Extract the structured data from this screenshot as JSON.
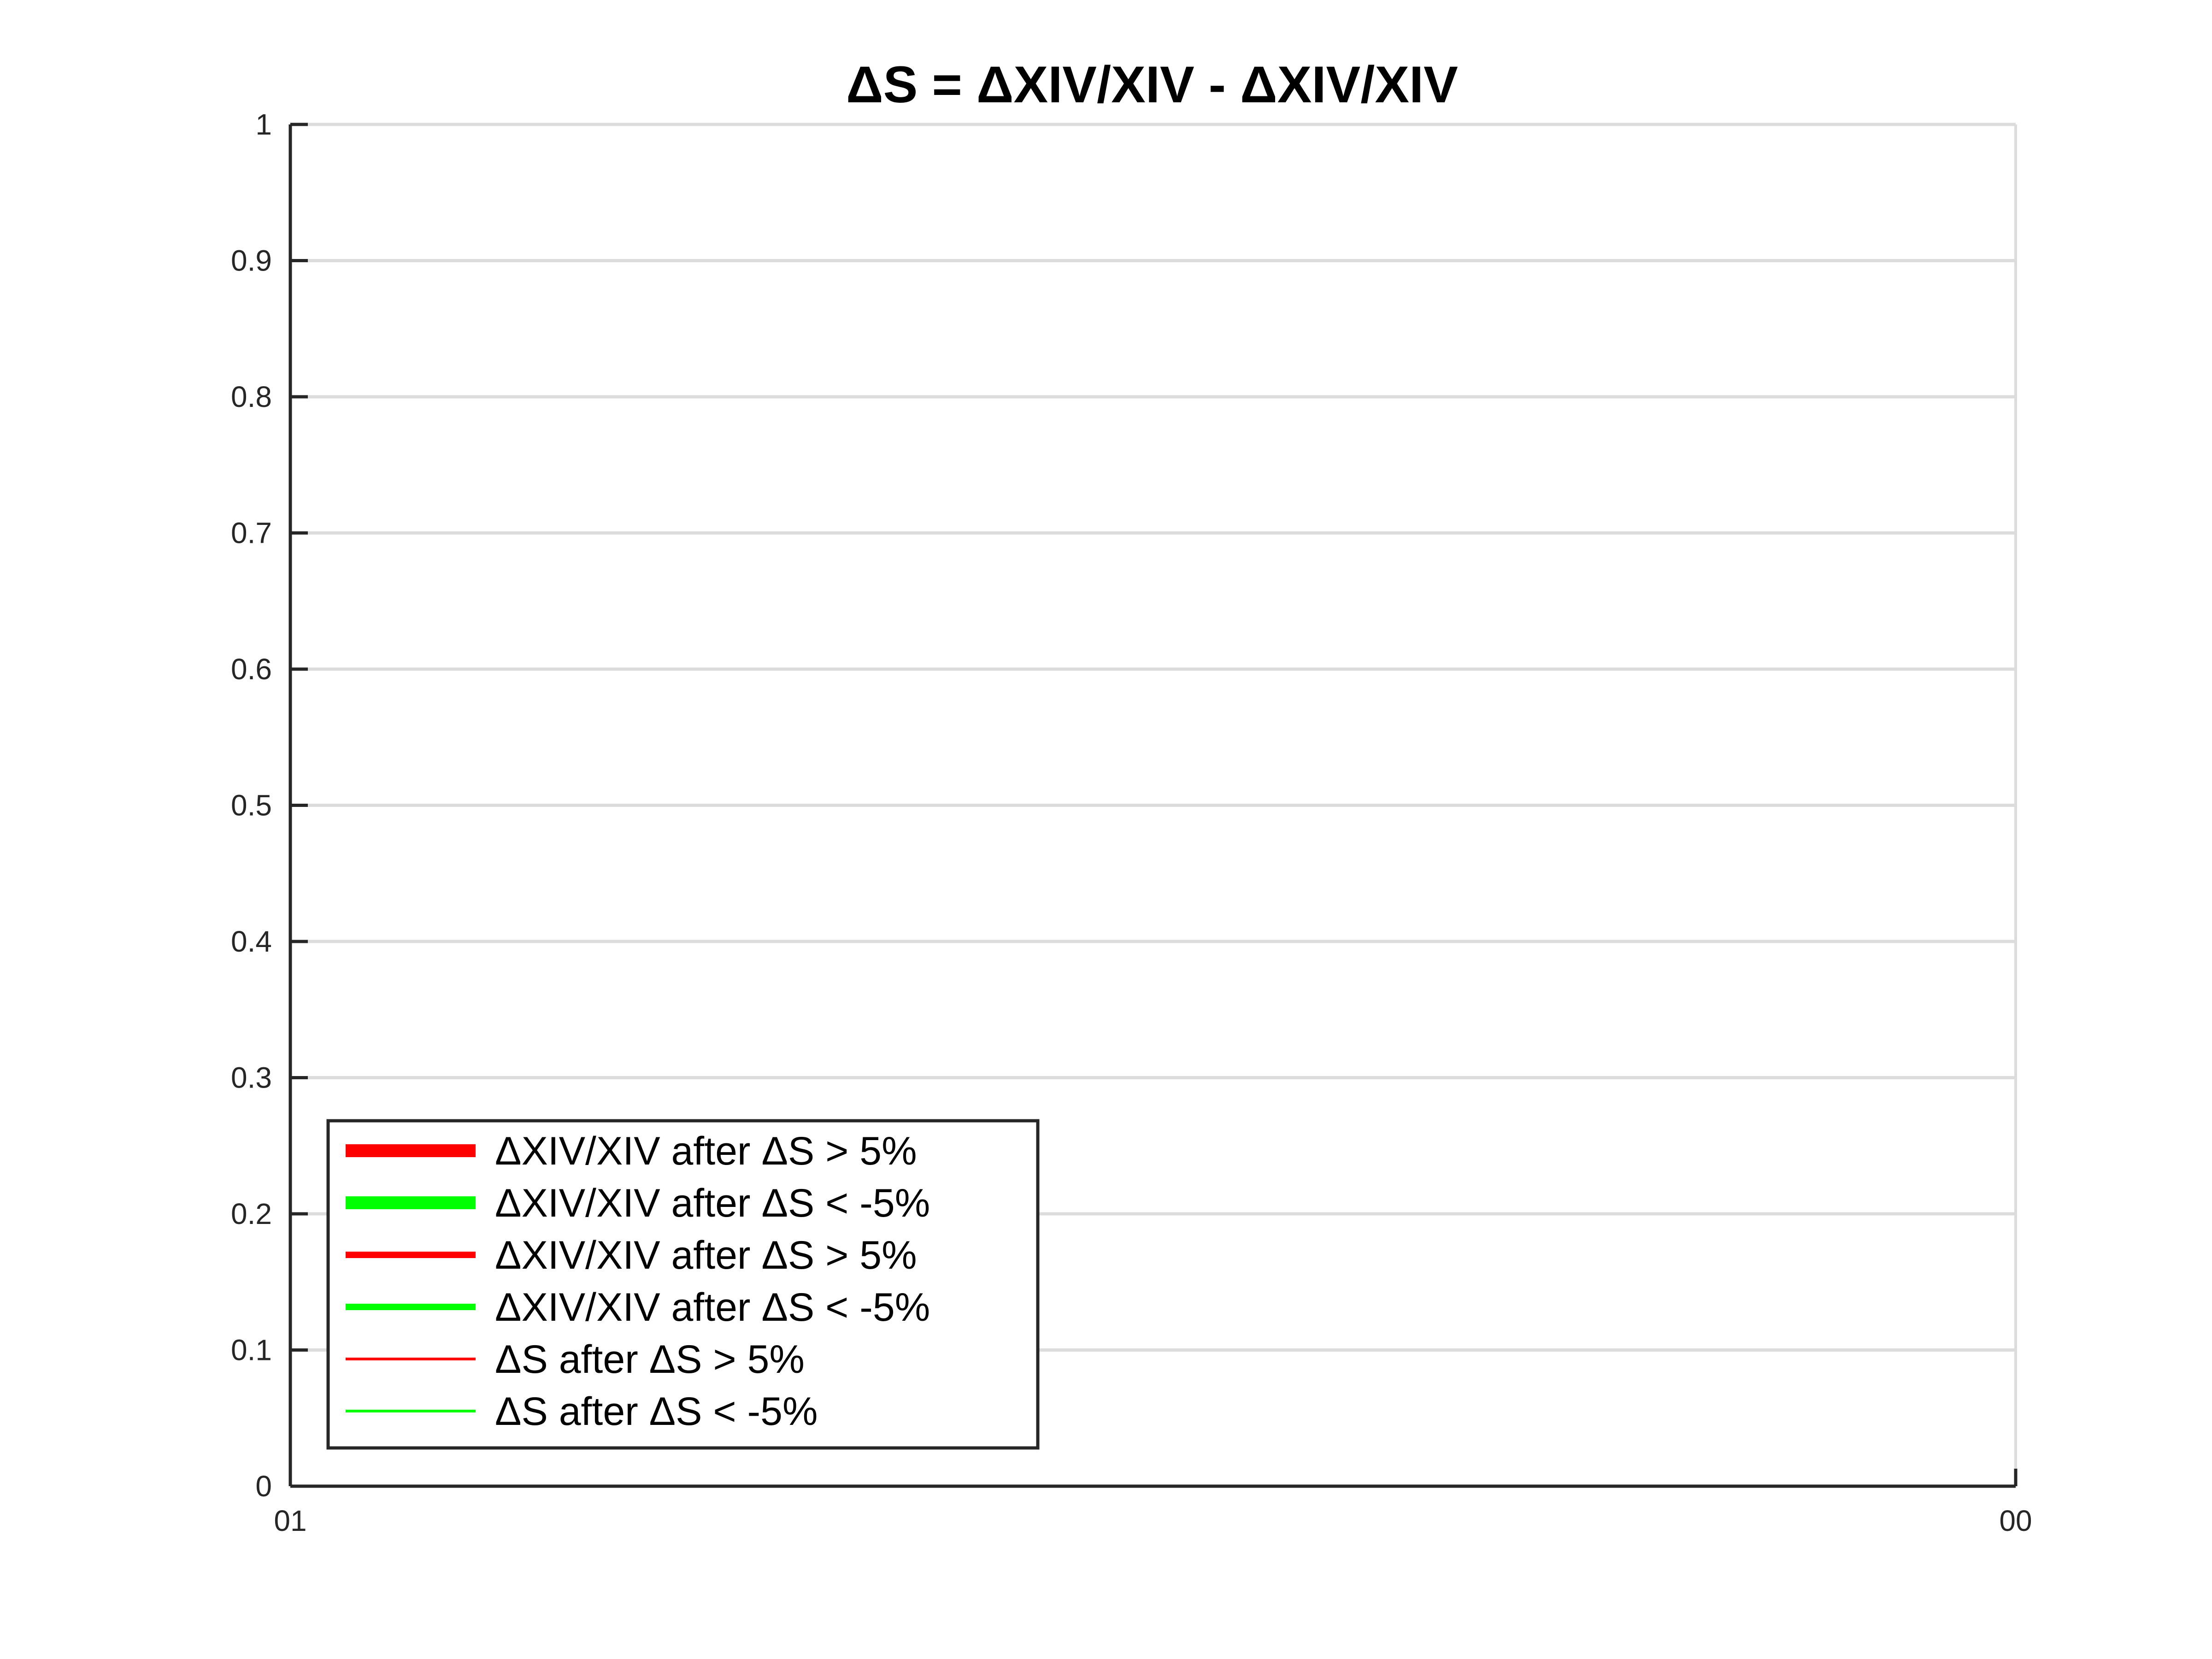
{
  "chart_data": {
    "type": "line",
    "title": "ΔS = ΔXIV/XIV - ΔXIV/XIV",
    "xlabel": "",
    "ylabel": "",
    "x_tick_labels": [
      "01",
      "00"
    ],
    "y_tick_labels": [
      "0",
      "0.1",
      "0.2",
      "0.3",
      "0.4",
      "0.5",
      "0.6",
      "0.7",
      "0.8",
      "0.9",
      "1"
    ],
    "y_ticks": [
      0,
      0.1,
      0.2,
      0.3,
      0.4,
      0.5,
      0.6,
      0.7,
      0.8,
      0.9,
      1
    ],
    "ylim": [
      0,
      1
    ],
    "grid": "horizontal",
    "legend_location": "bottom-left",
    "series": [
      {
        "name": "ΔXIV/XIV after ΔS > 5%",
        "color": "#ff0000",
        "weight": "thick",
        "values": []
      },
      {
        "name": "ΔXIV/XIV after ΔS < -5%",
        "color": "#00ff00",
        "weight": "thick",
        "values": []
      },
      {
        "name": "ΔXIV/XIV after ΔS > 5%",
        "color": "#ff0000",
        "weight": "medium",
        "values": []
      },
      {
        "name": "ΔXIV/XIV after ΔS < -5%",
        "color": "#00ff00",
        "weight": "medium",
        "values": []
      },
      {
        "name": "ΔS after ΔS > 5%",
        "color": "#ff0000",
        "weight": "thin",
        "values": []
      },
      {
        "name": "ΔS after ΔS < -5%",
        "color": "#00ff00",
        "weight": "thin",
        "values": []
      }
    ]
  }
}
